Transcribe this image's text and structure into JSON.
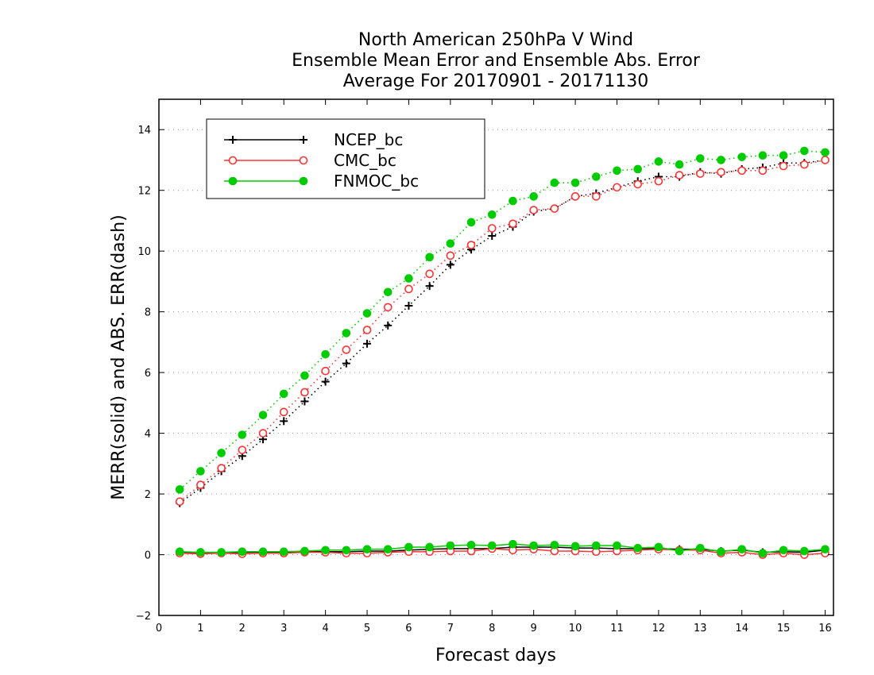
{
  "chart_data": {
    "type": "line",
    "title_lines": [
      "North American 250hPa V Wind",
      "Ensemble Mean Error and Ensemble Abs. Error",
      "Average For 20170901 - 20171130"
    ],
    "xlabel": "Forecast days",
    "ylabel": "MERR(solid) and ABS. ERR(dash)",
    "xlim": [
      0,
      16.2
    ],
    "ylim": [
      -2,
      15
    ],
    "xticks": [
      0,
      1,
      2,
      3,
      4,
      5,
      6,
      7,
      8,
      9,
      10,
      11,
      12,
      13,
      14,
      15,
      16
    ],
    "yticks": [
      -2,
      0,
      2,
      4,
      6,
      8,
      10,
      12,
      14
    ],
    "grid": "horizontal dotted",
    "legend_placement": "top-left",
    "x": [
      0.5,
      1,
      1.5,
      2,
      2.5,
      3,
      3.5,
      4,
      4.5,
      5,
      5.5,
      6,
      6.5,
      7,
      7.5,
      8,
      8.5,
      9,
      9.5,
      10,
      10.5,
      11,
      11.5,
      12,
      12.5,
      13,
      13.5,
      14,
      14.5,
      15,
      15.5,
      16
    ],
    "series": [
      {
        "name": "NCEP_bc",
        "color": "#000000",
        "marker": "plus",
        "merr": [
          0.08,
          0.05,
          0.06,
          0.08,
          0.08,
          0.07,
          0.1,
          0.1,
          0.1,
          0.12,
          0.12,
          0.15,
          0.18,
          0.2,
          0.2,
          0.2,
          0.25,
          0.25,
          0.25,
          0.22,
          0.22,
          0.2,
          0.2,
          0.2,
          0.18,
          0.18,
          0.12,
          0.15,
          0.08,
          0.1,
          0.08,
          0.15
        ],
        "abs_err": [
          1.7,
          2.2,
          2.75,
          3.25,
          3.8,
          4.4,
          5.05,
          5.7,
          6.3,
          6.95,
          7.55,
          8.2,
          8.85,
          9.55,
          10.05,
          10.5,
          10.8,
          11.3,
          11.4,
          11.8,
          11.9,
          12.1,
          12.3,
          12.45,
          12.45,
          12.6,
          12.55,
          12.7,
          12.75,
          12.9,
          12.9,
          13.0
        ]
      },
      {
        "name": "CMC_bc",
        "color": "#ff3333",
        "marker": "open-circle",
        "merr": [
          0.05,
          0.03,
          0.05,
          0.03,
          0.05,
          0.05,
          0.08,
          0.08,
          0.05,
          0.05,
          0.08,
          0.1,
          0.1,
          0.12,
          0.12,
          0.2,
          0.15,
          0.18,
          0.12,
          0.12,
          0.1,
          0.12,
          0.15,
          0.18,
          0.15,
          0.15,
          0.05,
          0.08,
          0.0,
          0.05,
          0.0,
          0.05
        ],
        "abs_err": [
          1.75,
          2.3,
          2.85,
          3.45,
          4.0,
          4.7,
          5.35,
          6.05,
          6.75,
          7.4,
          8.15,
          8.75,
          9.25,
          9.85,
          10.2,
          10.75,
          10.9,
          11.35,
          11.4,
          11.8,
          11.8,
          12.1,
          12.2,
          12.3,
          12.5,
          12.55,
          12.6,
          12.65,
          12.65,
          12.8,
          12.85,
          13.0
        ]
      },
      {
        "name": "FNMOC_bc",
        "color": "#00cc00",
        "marker": "filled-circle",
        "merr": [
          0.1,
          0.08,
          0.08,
          0.1,
          0.1,
          0.1,
          0.12,
          0.15,
          0.15,
          0.18,
          0.18,
          0.25,
          0.25,
          0.3,
          0.32,
          0.3,
          0.35,
          0.3,
          0.32,
          0.28,
          0.3,
          0.3,
          0.22,
          0.25,
          0.12,
          0.22,
          0.1,
          0.18,
          0.05,
          0.15,
          0.12,
          0.18
        ],
        "abs_err": [
          2.15,
          2.75,
          3.35,
          3.95,
          4.6,
          5.3,
          5.9,
          6.6,
          7.3,
          7.95,
          8.65,
          9.1,
          9.8,
          10.25,
          10.95,
          11.2,
          11.65,
          11.8,
          12.25,
          12.25,
          12.45,
          12.65,
          12.7,
          12.95,
          12.85,
          13.05,
          13.0,
          13.1,
          13.15,
          13.15,
          13.3,
          13.25
        ]
      }
    ]
  }
}
